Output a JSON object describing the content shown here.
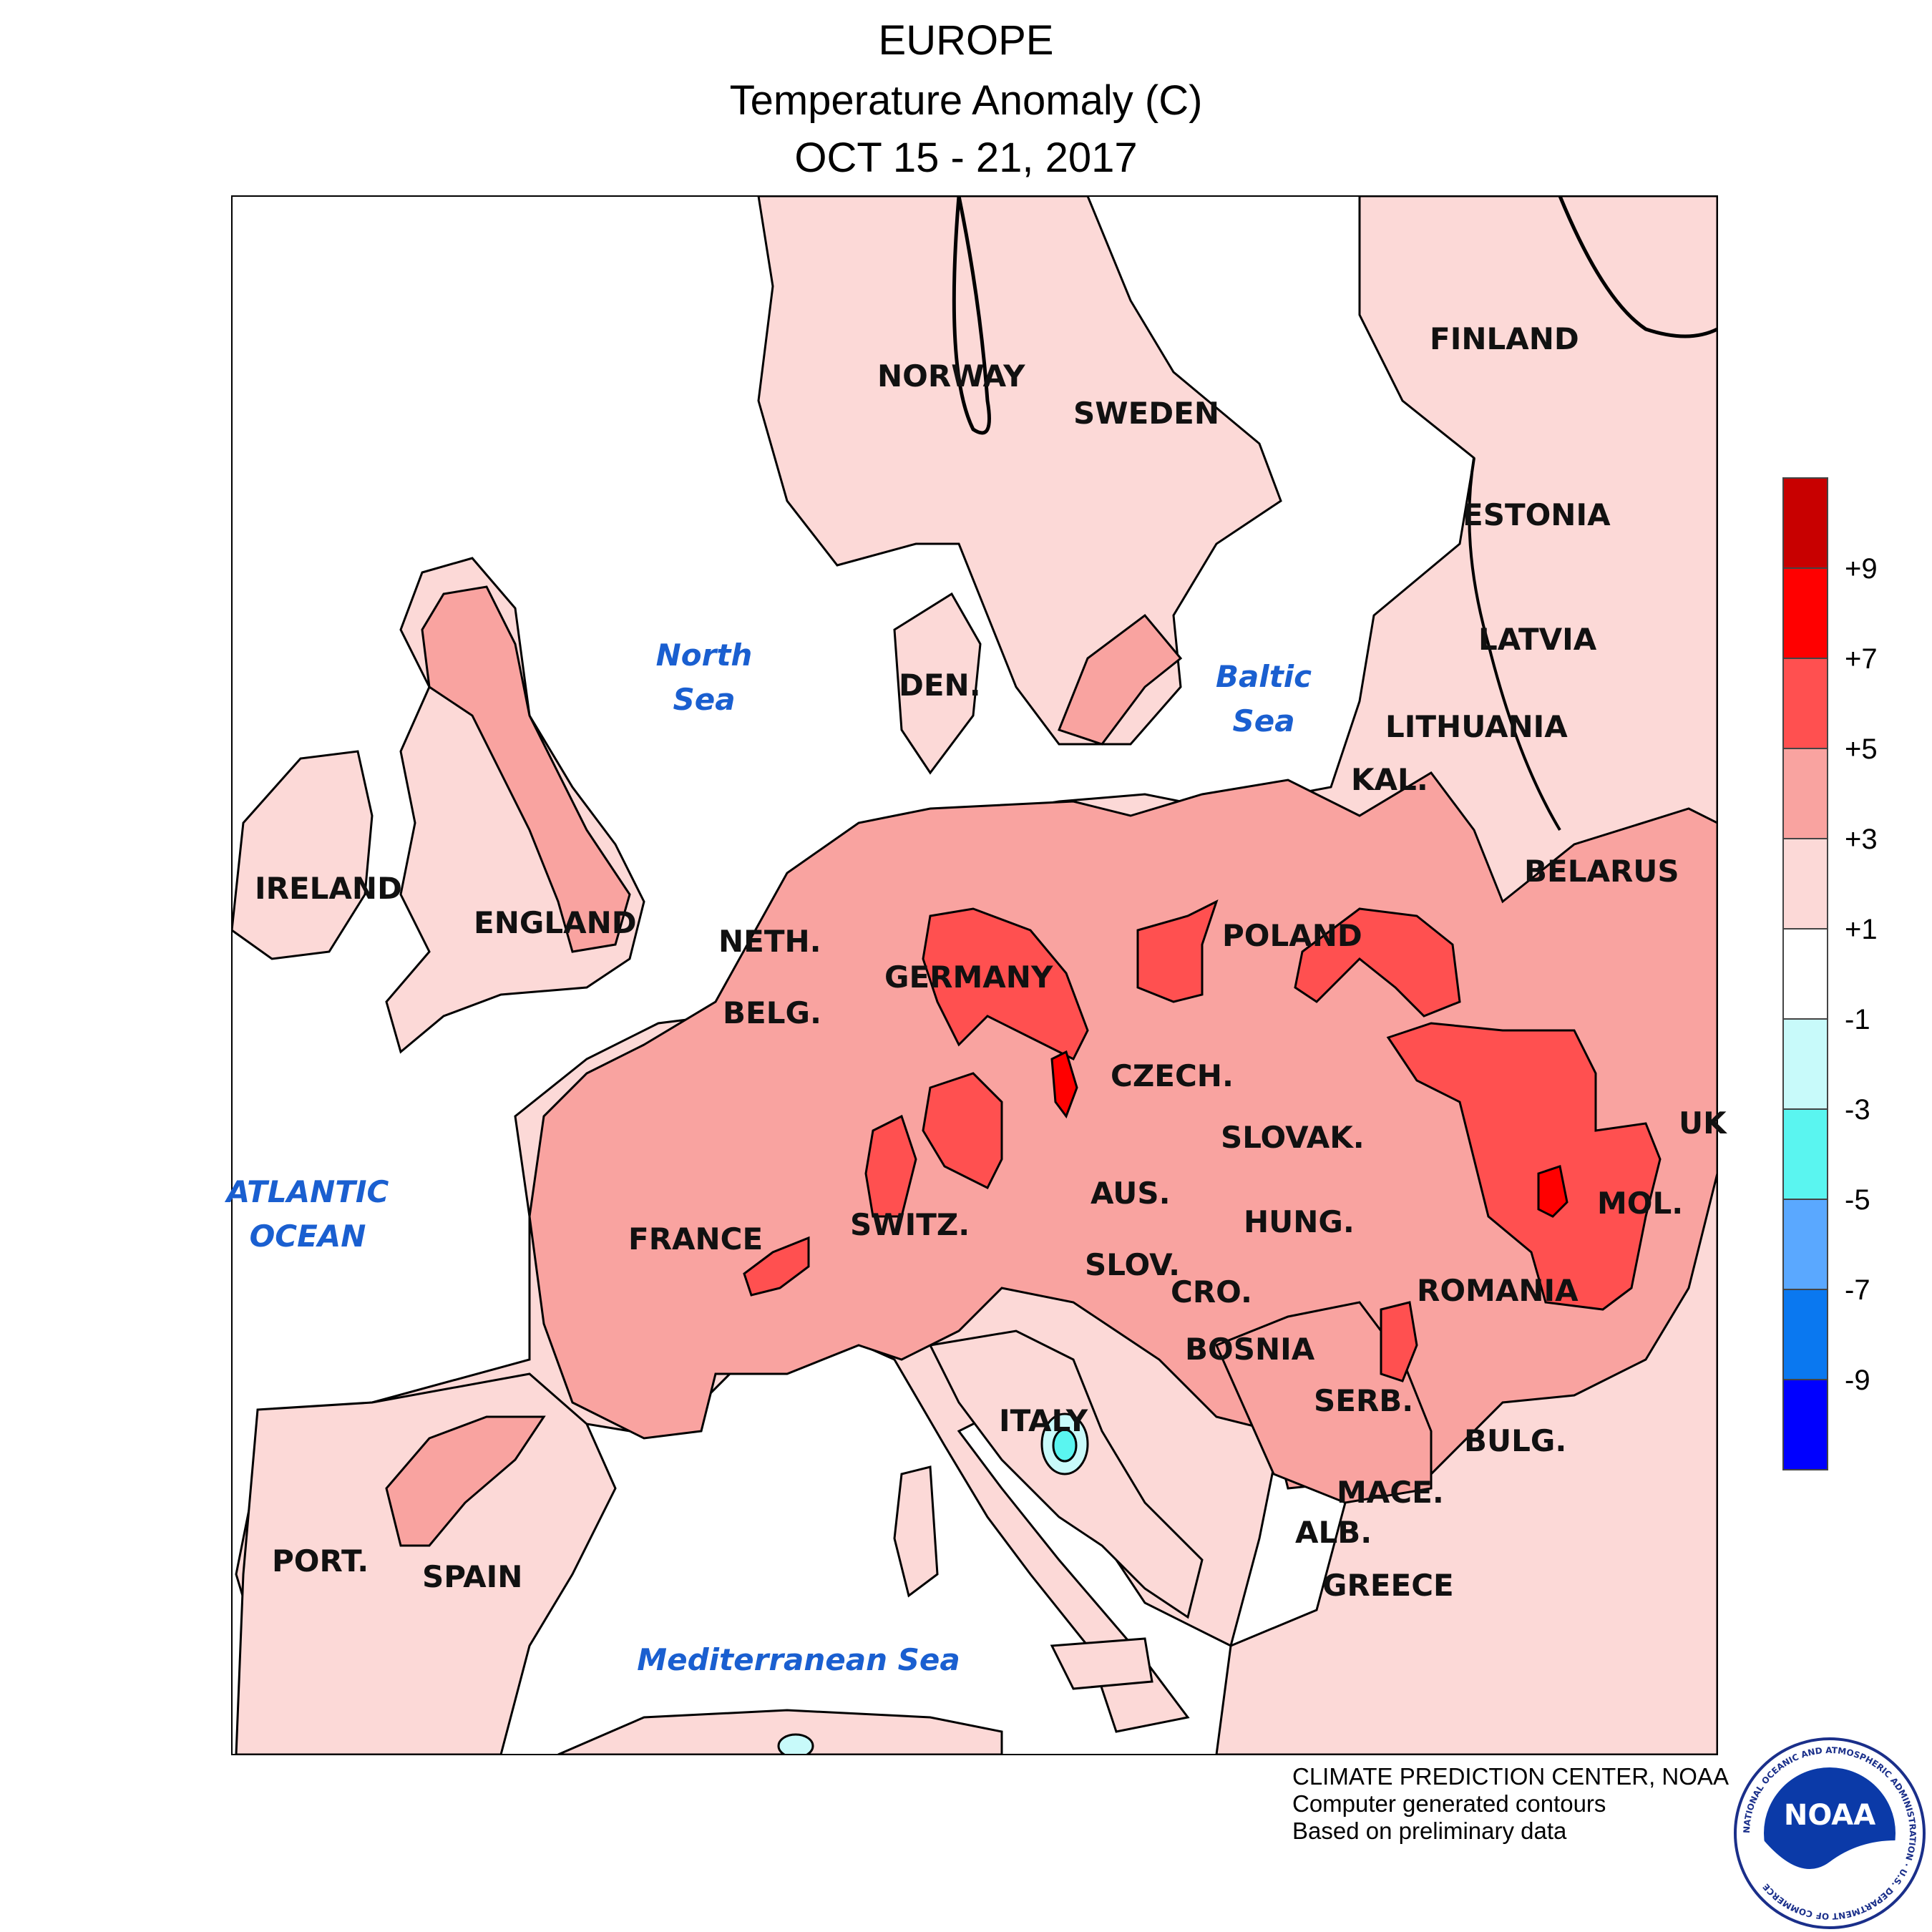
{
  "header": {
    "line1": "EUROPE",
    "line2": "Temperature Anomaly (C)",
    "line3": "OCT 15 - 21, 2017"
  },
  "map": {
    "regions": {
      "finland": "FINLAND",
      "norway": "NORWAY",
      "sweden": "SWEDEN",
      "estonia": "ESTONIA",
      "latvia": "LATVIA",
      "lithuania": "LITHUANIA",
      "kal": "KAL.",
      "belarus": "BELARUS",
      "den": "DEN.",
      "ireland": "IRELAND",
      "england": "ENGLAND",
      "neth": "NETH.",
      "belg": "BELG.",
      "germany": "GERMANY",
      "poland": "POLAND",
      "czech": "CZECH.",
      "slovak": "SLOVAK.",
      "ukr": "UK",
      "aus": "AUS.",
      "hung": "HUNG.",
      "mol": "MOL.",
      "switz": "SWITZ.",
      "france": "FRANCE",
      "slov": "SLOV.",
      "cro": "CRO.",
      "romania": "ROMANIA",
      "bosnia": "BOSNIA",
      "serb": "SERB.",
      "italy": "ITALY",
      "bulg": "BULG.",
      "mace": "MACE.",
      "alb": "ALB.",
      "greece": "GREECE",
      "port": "PORT.",
      "spain": "SPAIN"
    },
    "seas": {
      "north1": "North",
      "north2": "Sea",
      "baltic1": "Baltic",
      "baltic2": "Sea",
      "atlantic1": "ATLANTIC",
      "atlantic2": "OCEAN",
      "med": "Mediterranean Sea"
    }
  },
  "legend": {
    "ticks": [
      "+9",
      "+7",
      "+5",
      "+3",
      "+1",
      "-1",
      "-3",
      "-5",
      "-7",
      "-9"
    ],
    "colors": [
      "#c80000",
      "#ff0000",
      "#ff5050",
      "#f9a3a0",
      "#fcd9d7",
      "#ffffff",
      "#c8fafa",
      "#5af5f0",
      "#5aa8ff",
      "#0a78f0",
      "#0000ff"
    ]
  },
  "credits": {
    "line1": "CLIMATE PREDICTION CENTER, NOAA",
    "line2": "Computer generated contours",
    "line3": "Based on preliminary data"
  },
  "logo": {
    "text": "NOAA",
    "ring": "NATIONAL OCEANIC AND ATMOSPHERIC ADMINISTRATION · U.S. DEPARTMENT OF COMMERCE"
  }
}
